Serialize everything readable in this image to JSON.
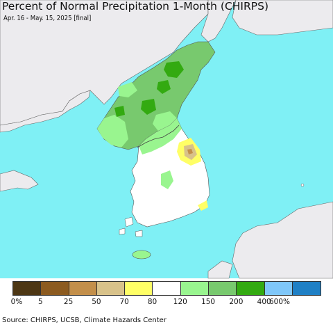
{
  "title": "Percent of Normal Precipitation 1-Month (CHIRPS)",
  "subtitle": "Apr. 16 - May. 15, 2025 [final]",
  "source": "Source: CHIRPS, UCSB, Climate Hazards Center",
  "colors": {
    "ocean": "#7ff0f5",
    "land_other": "#ecebee",
    "land_white": "#ffffff",
    "border": "#555555"
  },
  "legend": {
    "colors": [
      "#4d3714",
      "#8c5b20",
      "#c38f4a",
      "#d8c28a",
      "#ffff66",
      "#ffffff",
      "#99f58f",
      "#78c96e",
      "#33aa11",
      "#7fc7f9",
      "#1f80c5"
    ],
    "labels": [
      "0%",
      "5",
      "25",
      "50",
      "70",
      "80",
      "120",
      "150",
      "200",
      "400",
      "600%"
    ]
  }
}
